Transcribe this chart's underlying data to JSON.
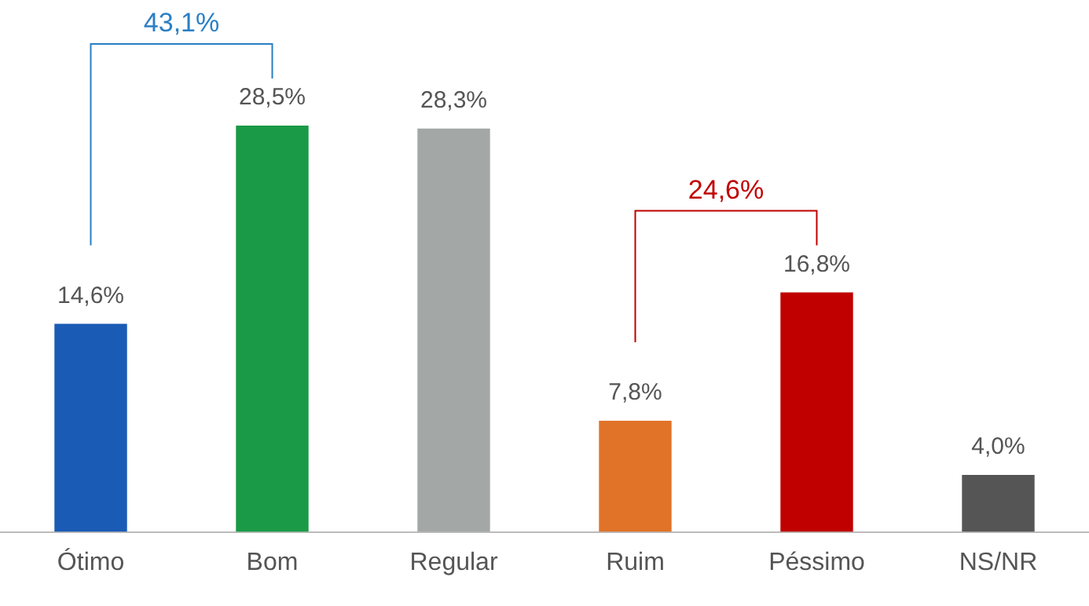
{
  "chart_data": {
    "type": "bar",
    "categories": [
      "Ótimo",
      "Bom",
      "Regular",
      "Ruim",
      "Péssimo",
      "NS/NR"
    ],
    "values": [
      14.6,
      28.5,
      28.3,
      7.8,
      16.8,
      4.0
    ],
    "colors": [
      "#1a5bb5",
      "#1a9a46",
      "#a3a8a6",
      "#e07328",
      "#c00000",
      "#555555"
    ],
    "value_labels": [
      "14,6%",
      "28,5%",
      "28,3%",
      "7,8%",
      "16,8%",
      "4,0%"
    ],
    "annotations": [
      "43,1%",
      "24,6%"
    ],
    "grid": false,
    "legend": false
  }
}
